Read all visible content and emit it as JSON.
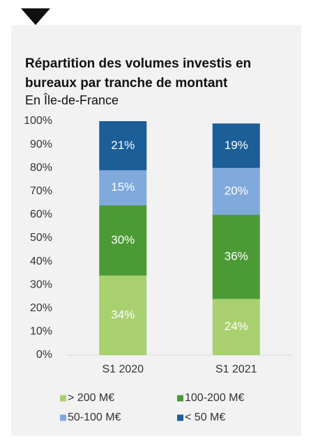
{
  "chart_data": {
    "type": "stacked_bar",
    "title": "Répartition des volumes investis en bureaux par tranche de montant",
    "subtitle": "En Île-de-France",
    "categories": [
      "S1 2020",
      "S1 2021"
    ],
    "series": [
      {
        "name": "> 200 M€",
        "color": "#a9d06f",
        "values": [
          34,
          24
        ],
        "value_labels": [
          "34%",
          "24%"
        ]
      },
      {
        "name": "100-200 M€",
        "color": "#4b9a36",
        "values": [
          30,
          36
        ],
        "value_labels": [
          "30%",
          "36%"
        ]
      },
      {
        "name": "50-100 M€",
        "color": "#80a9dc",
        "values": [
          15,
          20
        ],
        "value_labels": [
          "15%",
          "20%"
        ]
      },
      {
        "name": "< 50 M€",
        "color": "#1b5e98",
        "values": [
          21,
          19
        ],
        "value_labels": [
          "21%",
          "19%"
        ]
      }
    ],
    "ylim": [
      0,
      100
    ],
    "yticks": [
      {
        "value": 0,
        "label": "0%"
      },
      {
        "value": 10,
        "label": "10%"
      },
      {
        "value": 20,
        "label": "20%"
      },
      {
        "value": 30,
        "label": "30%"
      },
      {
        "value": 40,
        "label": "40%"
      },
      {
        "value": 50,
        "label": "50%"
      },
      {
        "value": 60,
        "label": "60%"
      },
      {
        "value": 70,
        "label": "70%"
      },
      {
        "value": 80,
        "label": "80%"
      },
      {
        "value": 90,
        "label": "90%"
      },
      {
        "value": 100,
        "label": "100%"
      }
    ]
  }
}
